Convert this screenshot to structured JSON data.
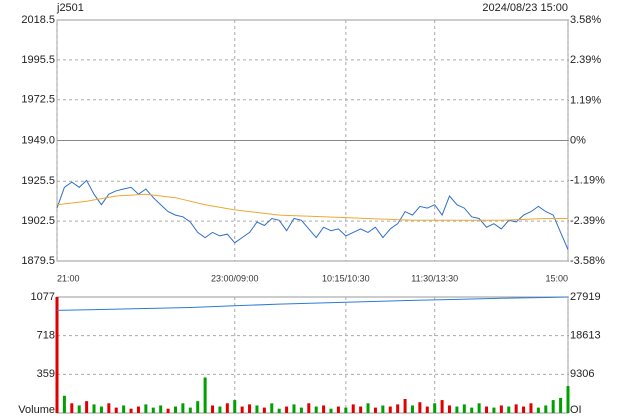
{
  "chart_data": [
    {
      "type": "line",
      "title": "j2501",
      "timestamp": "2024/08/23 15:00",
      "x": [
        0,
        5,
        10,
        15,
        20,
        25,
        30,
        35,
        40,
        45,
        50,
        55,
        60,
        65,
        70,
        75,
        80,
        85,
        90,
        95,
        100,
        105,
        110,
        115,
        120,
        125,
        130,
        135,
        140,
        145,
        150,
        155,
        160,
        165,
        170,
        175,
        180,
        185,
        190,
        195,
        200,
        205,
        210,
        215,
        220,
        225,
        230,
        235,
        240,
        245,
        250,
        255,
        260,
        265,
        270,
        275,
        280,
        285,
        290,
        295,
        300,
        305,
        310,
        315,
        320,
        325,
        330,
        335,
        340,
        345
      ],
      "xlim": [
        0,
        345
      ],
      "xticks": [
        {
          "value": 0,
          "label": "21:00"
        },
        {
          "value": 120,
          "label": "23:00/09:00"
        },
        {
          "value": 195,
          "label": "10:15/10:30"
        },
        {
          "value": 255,
          "label": "11:30/13:30"
        },
        {
          "value": 345,
          "label": "15:00"
        }
      ],
      "ylim": [
        1879.5,
        2018.5
      ],
      "yticks": [
        2018.5,
        1995.5,
        1972.5,
        {
          "value": 1949,
          "label": "1949.0"
        },
        1925.5,
        1902.5,
        1879.5
      ],
      "y2lim": [
        -3.58,
        3.58
      ],
      "y2ticks": [
        {
          "value": 3.58,
          "label": "3.58%"
        },
        {
          "value": 2.39,
          "label": "2.39%"
        },
        {
          "value": 1.19,
          "label": "1.19%"
        },
        {
          "value": 0,
          "label": "0%"
        },
        {
          "value": -1.19,
          "label": "-1.19%"
        },
        {
          "value": -2.39,
          "label": "-2.39%"
        },
        {
          "value": -3.58,
          "label": "-3.58%"
        }
      ],
      "up_color": "#cc0000",
      "down_color": "#008800",
      "grid": true,
      "series": [
        {
          "color": "#2f6fc9",
          "values": [
            1910,
            1922,
            1925,
            1922,
            1926,
            1918,
            1912,
            1918,
            1920,
            1921,
            1922,
            1918,
            1921,
            1916,
            1912,
            1908,
            1906,
            1905,
            1902,
            1896,
            1893,
            1896,
            1894,
            1895,
            1890,
            1893,
            1896,
            1902,
            1900,
            1904,
            1903,
            1897,
            1904,
            1903,
            1898,
            1893,
            1899,
            1897,
            1898,
            1894,
            1896,
            1898,
            1896,
            1899,
            1893,
            1898,
            1901,
            1908,
            1906,
            1911,
            1910,
            1912,
            1906,
            1917,
            1912,
            1910,
            1905,
            1904,
            1899,
            1901,
            1898,
            1903,
            1902,
            1906,
            1908,
            1911,
            1908,
            1906,
            1896,
            1886
          ]
        },
        {
          "color": "#f0a830",
          "x": [
            0,
            20,
            40,
            60,
            80,
            100,
            120,
            150,
            180,
            210,
            240,
            270,
            300,
            330,
            345
          ],
          "values": [
            1912,
            1914,
            1917,
            1918,
            1916,
            1912,
            1909,
            1906,
            1905,
            1904,
            1903,
            1903,
            1903,
            1904,
            1904
          ]
        }
      ]
    },
    {
      "type": "bar",
      "ylabel": "Volume",
      "y2label": "OI",
      "x": [
        0,
        5,
        10,
        15,
        20,
        25,
        30,
        35,
        40,
        45,
        50,
        55,
        60,
        65,
        70,
        75,
        80,
        85,
        90,
        95,
        100,
        105,
        110,
        115,
        120,
        125,
        130,
        135,
        140,
        145,
        150,
        155,
        160,
        165,
        170,
        175,
        180,
        185,
        190,
        195,
        200,
        205,
        210,
        215,
        220,
        225,
        230,
        235,
        240,
        245,
        250,
        255,
        260,
        265,
        270,
        275,
        280,
        285,
        290,
        295,
        300,
        305,
        310,
        315,
        320,
        325,
        330,
        335,
        340,
        345
      ],
      "xlim": [
        0,
        345
      ],
      "values": [
        1077,
        160,
        90,
        70,
        110,
        80,
        60,
        90,
        50,
        70,
        40,
        60,
        80,
        50,
        70,
        40,
        60,
        90,
        50,
        110,
        330,
        70,
        60,
        90,
        120,
        60,
        80,
        70,
        50,
        90,
        40,
        60,
        80,
        50,
        90,
        60,
        70,
        40,
        60,
        50,
        80,
        60,
        90,
        50,
        70,
        60,
        80,
        130,
        70,
        100,
        60,
        90,
        120,
        70,
        60,
        80,
        50,
        90,
        60,
        50,
        70,
        60,
        80,
        60,
        90,
        50,
        70,
        120,
        140,
        250
      ],
      "colors": [
        "#e00000",
        "#00a000",
        "#e00000",
        "#00a000",
        "#e00000",
        "#00a000",
        "#00a000",
        "#e00000",
        "#e00000",
        "#00a000",
        "#e00000",
        "#e00000",
        "#00a000",
        "#00a000",
        "#00a000",
        "#e00000",
        "#00a000",
        "#00a000",
        "#00a000",
        "#00a000",
        "#00a000",
        "#e00000",
        "#00a000",
        "#e00000",
        "#00a000",
        "#e00000",
        "#e00000",
        "#00a000",
        "#e00000",
        "#00a000",
        "#00a000",
        "#e00000",
        "#00a000",
        "#00a000",
        "#e00000",
        "#00a000",
        "#e00000",
        "#00a000",
        "#e00000",
        "#00a000",
        "#e00000",
        "#e00000",
        "#00a000",
        "#e00000",
        "#00a000",
        "#e00000",
        "#e00000",
        "#e00000",
        "#00a000",
        "#e00000",
        "#e00000",
        "#00a000",
        "#e00000",
        "#e00000",
        "#00a000",
        "#00a000",
        "#00a000",
        "#00a000",
        "#e00000",
        "#00a000",
        "#e00000",
        "#00a000",
        "#e00000",
        "#e00000",
        "#e00000",
        "#00a000",
        "#00a000",
        "#00a000",
        "#00a000",
        "#00a000"
      ],
      "ylim": [
        0,
        1077
      ],
      "yticks": [
        359,
        718,
        1077
      ],
      "y2lim": [
        0,
        27919
      ],
      "y2ticks": [
        9306,
        18613,
        27919
      ],
      "series": [
        {
          "axis": "y2",
          "color": "#2f7bd3",
          "x": [
            0,
            30,
            60,
            90,
            120,
            150,
            180,
            210,
            240,
            270,
            300,
            330,
            345
          ],
          "values": [
            24700,
            24900,
            25150,
            25400,
            25800,
            26200,
            26500,
            26800,
            27100,
            27350,
            27600,
            27800,
            27919
          ]
        }
      ]
    }
  ]
}
